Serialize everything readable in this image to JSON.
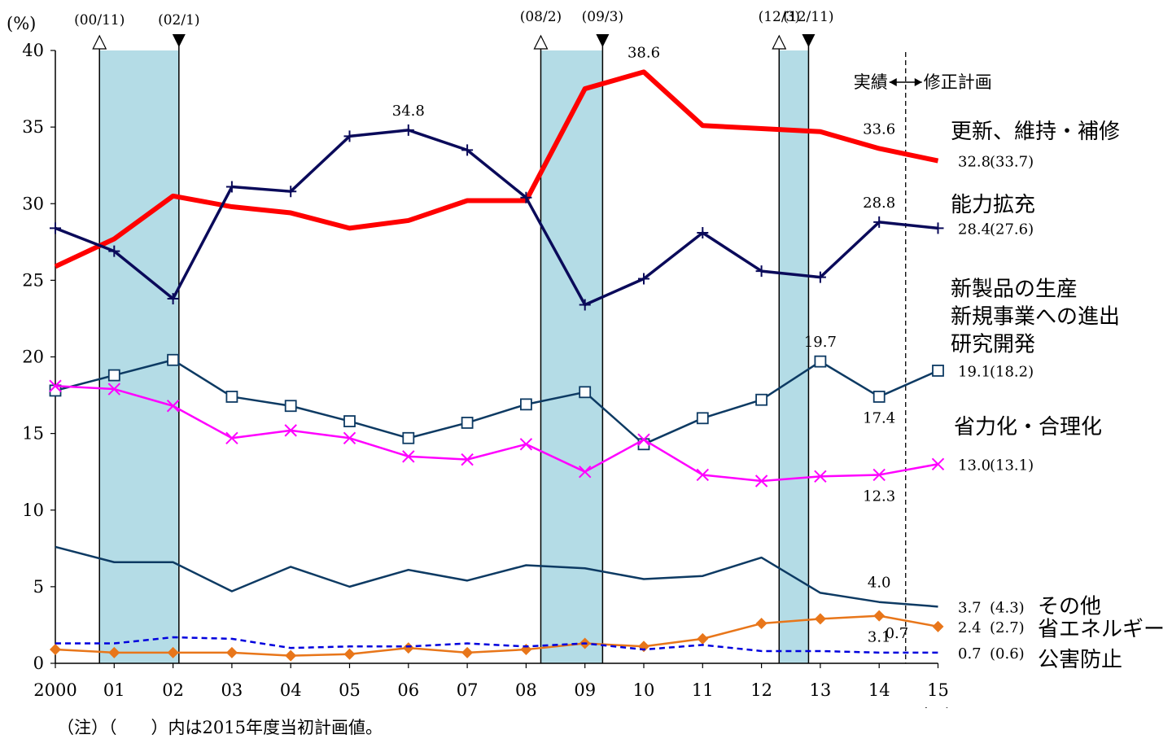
{
  "chart_data": {
    "type": "line",
    "ylabel": "(%)",
    "xlabel": "(年度)",
    "ylim": [
      0,
      40
    ],
    "yticks": [
      0,
      5,
      10,
      15,
      20,
      25,
      30,
      35,
      40
    ],
    "x": [
      "2000",
      "01",
      "02",
      "03",
      "04",
      "05",
      "06",
      "07",
      "08",
      "09",
      "10",
      "11",
      "12",
      "13",
      "14",
      "15"
    ],
    "grid": false,
    "series": [
      {
        "name": "更新、維持・補修",
        "color": "#ff0000",
        "marker": "none",
        "values": [
          25.9,
          27.7,
          30.5,
          29.8,
          29.4,
          28.4,
          28.9,
          30.2,
          30.2,
          37.5,
          38.6,
          35.1,
          34.9,
          34.7,
          33.6,
          32.8
        ]
      },
      {
        "name": "能力拡充",
        "color": "#0a0a5a",
        "marker": "plus",
        "values": [
          28.4,
          26.9,
          23.8,
          31.1,
          30.8,
          34.4,
          34.8,
          33.5,
          30.4,
          23.4,
          25.1,
          28.1,
          25.6,
          25.2,
          28.8,
          28.4
        ]
      },
      {
        "name": "新製品の生産 新規事業への進出 研究開発",
        "color": "#0d3a63",
        "marker": "square",
        "values": [
          17.8,
          18.8,
          19.8,
          17.4,
          16.8,
          15.8,
          14.7,
          15.7,
          16.9,
          17.7,
          14.3,
          16.0,
          17.2,
          19.7,
          17.4,
          19.1
        ]
      },
      {
        "name": "省力化・合理化",
        "color": "#ff00ff",
        "marker": "x",
        "values": [
          18.1,
          17.9,
          16.8,
          14.7,
          15.2,
          14.7,
          13.5,
          13.3,
          14.3,
          12.5,
          14.6,
          12.3,
          11.9,
          12.2,
          12.3,
          13.0
        ]
      },
      {
        "name": "その他",
        "color": "#0d3a63",
        "marker": "none",
        "values": [
          7.6,
          6.6,
          6.6,
          4.7,
          6.3,
          5.0,
          6.1,
          5.4,
          6.4,
          6.2,
          5.5,
          5.7,
          6.9,
          4.6,
          4.0,
          3.7
        ]
      },
      {
        "name": "省エネルギー",
        "color": "#e8761a",
        "marker": "diamond",
        "values": [
          0.9,
          0.7,
          0.7,
          0.7,
          0.5,
          0.6,
          1.0,
          0.7,
          0.9,
          1.3,
          1.1,
          1.6,
          2.6,
          2.9,
          3.1,
          2.4
        ]
      },
      {
        "name": "公害防止",
        "color": "#0000dd",
        "marker": "none",
        "dashed": true,
        "values": [
          1.3,
          1.3,
          1.7,
          1.6,
          1.0,
          1.1,
          1.1,
          1.3,
          1.1,
          1.3,
          0.9,
          1.2,
          0.8,
          0.8,
          0.7,
          0.7
        ]
      }
    ],
    "recessions": [
      {
        "from": 0.75,
        "to": 2.1,
        "start_label": "(00/11)",
        "end_label": "(02/1)"
      },
      {
        "from": 8.25,
        "to": 9.3,
        "start_label": "(08/2)",
        "end_label": "(09/3)"
      },
      {
        "from": 12.3,
        "to": 12.8,
        "start_label": "(12/3)",
        "end_label": "(12/11)"
      }
    ],
    "divider_at": 14.45,
    "divider_left_label": "実績",
    "divider_right_label": "修正計画",
    "value_annotations": [
      {
        "text": "34.8",
        "x": 6,
        "y": 34.8,
        "pos": "above"
      },
      {
        "text": "38.6",
        "x": 10,
        "y": 38.6,
        "pos": "above"
      },
      {
        "text": "33.6",
        "x": 14,
        "y": 33.6,
        "pos": "above"
      },
      {
        "text": "28.8",
        "x": 14,
        "y": 28.8,
        "pos": "above"
      },
      {
        "text": "19.7",
        "x": 13,
        "y": 19.7,
        "pos": "above"
      },
      {
        "text": "17.4",
        "x": 14,
        "y": 17.4,
        "pos": "below"
      },
      {
        "text": "12.3",
        "x": 14,
        "y": 12.3,
        "pos": "below"
      },
      {
        "text": "4.0",
        "x": 14,
        "y": 4.0,
        "pos": "above"
      },
      {
        "text": "3.1",
        "x": 14,
        "y": 3.1,
        "pos": "below"
      },
      {
        "text": "0.7",
        "x": 14.3,
        "y": 0.7,
        "pos": "above"
      }
    ],
    "end_labels": [
      {
        "value": "32.8",
        "plan": "(33.7)",
        "y": 32.8
      },
      {
        "value": "28.4",
        "plan": "(27.6)",
        "y": 28.4
      },
      {
        "value": "19.1",
        "plan": "(18.2)",
        "y": 19.1
      },
      {
        "value": "13.0",
        "plan": "(13.1)",
        "y": 13.0
      },
      {
        "value": "3.7",
        "plan": "(4.3)",
        "y": 3.7
      },
      {
        "value": "2.4",
        "plan": "(2.7)",
        "y": 2.4
      },
      {
        "value": "0.7",
        "plan": "(0.6)",
        "y": 0.7
      }
    ],
    "category_labels": [
      {
        "lines": [
          "更新、維持・補修"
        ],
        "y": 34.7
      },
      {
        "lines": [
          "能力拡充"
        ],
        "y": 29.9
      },
      {
        "lines": [
          "新製品の生産",
          "新規事業への進出",
          "研究開発"
        ],
        "y": 24.4
      },
      {
        "lines": [
          "省力化・合理化"
        ],
        "y": 15.4
      },
      {
        "lines": [
          "その他"
        ],
        "y": 3.7
      },
      {
        "lines": [
          "省エネルギー"
        ],
        "y": 2.2
      },
      {
        "lines": [
          "公害防止"
        ],
        "y": 0.2
      }
    ]
  },
  "note": "（注）（　　）内は2015年度当初計画値。"
}
